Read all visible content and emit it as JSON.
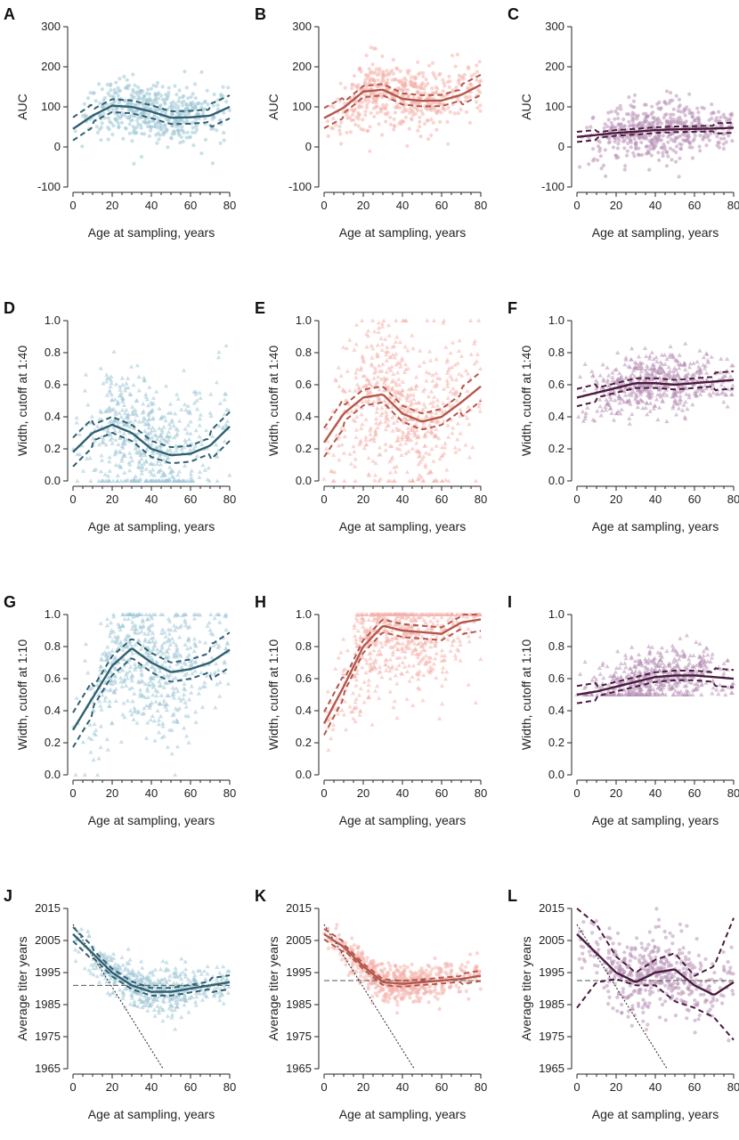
{
  "colors": {
    "teal": "#2f5f70",
    "teal_pts": "#9fc6d6",
    "red": "#b5564a",
    "red_pts": "#f4b3ab",
    "purple": "#4a1a3e",
    "purple_pts": "#b892b6"
  },
  "chart_data": [
    {
      "id": "A",
      "label": "A",
      "type": "scatter",
      "ylabel": "AUC",
      "xlabel": "Age at sampling, years",
      "xlim": [
        0,
        80
      ],
      "ylim": [
        -100,
        300
      ],
      "yticks": [
        -100,
        0,
        100,
        200,
        300
      ],
      "xticks": [
        0,
        20,
        40,
        60,
        80
      ],
      "color": "teal",
      "marker": "circle",
      "fit": {
        "x": [
          0,
          10,
          20,
          30,
          40,
          50,
          60,
          70,
          80
        ],
        "y": [
          45,
          78,
          103,
          100,
          88,
          73,
          74,
          78,
          100
        ]
      },
      "ci": 16,
      "points": {
        "n": 500,
        "cloud": [
          0.05,
          0.2,
          0.75,
          1.0,
          1.0,
          0.9,
          0.6,
          0.25
        ],
        "spread": 35
      }
    },
    {
      "id": "B",
      "label": "B",
      "type": "scatter",
      "ylabel": "AUC",
      "xlabel": "Age at sampling, years",
      "xlim": [
        0,
        80
      ],
      "ylim": [
        -100,
        300
      ],
      "yticks": [
        -100,
        0,
        100,
        200,
        300
      ],
      "xticks": [
        0,
        20,
        40,
        60,
        80
      ],
      "color": "red",
      "marker": "circle",
      "fit": {
        "x": [
          0,
          10,
          20,
          30,
          40,
          50,
          60,
          70,
          80
        ],
        "y": [
          72,
          98,
          138,
          143,
          120,
          115,
          116,
          130,
          155
        ]
      },
      "ci": 14,
      "points": {
        "n": 520,
        "cloud": [
          0.05,
          0.25,
          0.8,
          1.0,
          1.0,
          0.9,
          0.6,
          0.3
        ],
        "spread": 40
      }
    },
    {
      "id": "C",
      "label": "C",
      "type": "scatter",
      "ylabel": "AUC",
      "xlabel": "Age at sampling, years",
      "xlim": [
        0,
        80
      ],
      "ylim": [
        -100,
        300
      ],
      "yticks": [
        -100,
        0,
        100,
        200,
        300
      ],
      "xticks": [
        0,
        20,
        40,
        60,
        80
      ],
      "color": "purple",
      "marker": "circle",
      "fit": {
        "x": [
          0,
          10,
          20,
          30,
          40,
          50,
          60,
          70,
          80
        ],
        "y": [
          25,
          30,
          35,
          38,
          42,
          44,
          45,
          46,
          48
        ]
      },
      "ci": 7,
      "points": {
        "n": 500,
        "cloud": [
          0.05,
          0.2,
          0.6,
          0.95,
          1.0,
          0.95,
          0.7,
          0.35
        ],
        "spread": 35
      }
    },
    {
      "id": "D",
      "label": "D",
      "type": "scatter",
      "ylabel": "Width, cutoff at 1:40",
      "xlabel": "Age at sampling, years",
      "xlim": [
        0,
        80
      ],
      "ylim": [
        0,
        1
      ],
      "yticks": [
        0.0,
        0.2,
        0.4,
        0.6,
        0.8,
        1.0
      ],
      "xticks": [
        0,
        20,
        40,
        60,
        80
      ],
      "color": "teal",
      "marker": "triangle",
      "fit": {
        "x": [
          0,
          10,
          20,
          30,
          40,
          50,
          60,
          70,
          80
        ],
        "y": [
          0.18,
          0.3,
          0.35,
          0.3,
          0.2,
          0.16,
          0.17,
          0.22,
          0.34
        ]
      },
      "ci": 0.05,
      "points": {
        "n": 560,
        "cloud": [
          0.05,
          0.25,
          0.8,
          1.0,
          1.0,
          0.9,
          0.6,
          0.25
        ],
        "spread": 0.22,
        "clip": [
          0,
          1
        ]
      }
    },
    {
      "id": "E",
      "label": "E",
      "type": "scatter",
      "ylabel": "Width, cutoff at 1:40",
      "xlabel": "Age at sampling, years",
      "xlim": [
        0,
        80
      ],
      "ylim": [
        0,
        1
      ],
      "yticks": [
        0.0,
        0.2,
        0.4,
        0.6,
        0.8,
        1.0
      ],
      "xticks": [
        0,
        20,
        40,
        60,
        80
      ],
      "color": "red",
      "marker": "triangle",
      "fit": {
        "x": [
          0,
          10,
          20,
          30,
          40,
          50,
          60,
          70,
          80
        ],
        "y": [
          0.24,
          0.42,
          0.52,
          0.54,
          0.42,
          0.37,
          0.4,
          0.49,
          0.59
        ]
      },
      "ci": 0.05,
      "points": {
        "n": 600,
        "cloud": [
          0.05,
          0.3,
          0.85,
          1.0,
          1.0,
          0.9,
          0.6,
          0.3
        ],
        "spread": 0.25,
        "clip": [
          0,
          1
        ]
      }
    },
    {
      "id": "F",
      "label": "F",
      "type": "scatter",
      "ylabel": "Width, cutoff at 1:40",
      "xlabel": "Age at sampling, years",
      "xlim": [
        0,
        80
      ],
      "ylim": [
        0,
        1
      ],
      "yticks": [
        0.0,
        0.2,
        0.4,
        0.6,
        0.8,
        1.0
      ],
      "xticks": [
        0,
        20,
        40,
        60,
        80
      ],
      "color": "purple",
      "marker": "triangle",
      "fit": {
        "x": [
          0,
          10,
          20,
          30,
          40,
          50,
          60,
          70,
          80
        ],
        "y": [
          0.52,
          0.55,
          0.58,
          0.61,
          0.61,
          0.6,
          0.61,
          0.62,
          0.63
        ]
      },
      "ci": 0.03,
      "points": {
        "n": 560,
        "cloud": [
          0.05,
          0.25,
          0.7,
          1.0,
          1.0,
          0.95,
          0.65,
          0.3
        ],
        "spread": 0.09,
        "clip": [
          0,
          1
        ]
      }
    },
    {
      "id": "G",
      "label": "G",
      "type": "scatter",
      "ylabel": "Width, cutoff at 1:10",
      "xlabel": "Age at sampling, years",
      "xlim": [
        0,
        80
      ],
      "ylim": [
        0,
        1
      ],
      "yticks": [
        0.0,
        0.2,
        0.4,
        0.6,
        0.8,
        1.0
      ],
      "xticks": [
        0,
        20,
        40,
        60,
        80
      ],
      "color": "teal",
      "marker": "triangle",
      "fit": {
        "x": [
          0,
          10,
          20,
          30,
          40,
          50,
          60,
          70,
          80
        ],
        "y": [
          0.28,
          0.48,
          0.68,
          0.79,
          0.7,
          0.64,
          0.66,
          0.7,
          0.78
        ]
      },
      "ci": 0.06,
      "points": {
        "n": 600,
        "cloud": [
          0.05,
          0.25,
          0.8,
          1.0,
          1.0,
          0.9,
          0.6,
          0.25
        ],
        "spread": 0.22,
        "clip": [
          0,
          1
        ]
      }
    },
    {
      "id": "H",
      "label": "H",
      "type": "scatter",
      "ylabel": "Width, cutoff at 1:10",
      "xlabel": "Age at sampling, years",
      "xlim": [
        0,
        80
      ],
      "ylim": [
        0,
        1
      ],
      "yticks": [
        0.0,
        0.2,
        0.4,
        0.6,
        0.8,
        1.0
      ],
      "xticks": [
        0,
        20,
        40,
        60,
        80
      ],
      "color": "red",
      "marker": "triangle",
      "fit": {
        "x": [
          0,
          10,
          20,
          30,
          40,
          50,
          60,
          70,
          80
        ],
        "y": [
          0.32,
          0.55,
          0.8,
          0.93,
          0.9,
          0.89,
          0.88,
          0.95,
          0.97
        ]
      },
      "ci": 0.04,
      "points": {
        "n": 640,
        "cloud": [
          0.05,
          0.3,
          0.85,
          1.0,
          1.0,
          0.9,
          0.6,
          0.3
        ],
        "spread": 0.18,
        "clip": [
          0,
          1
        ]
      }
    },
    {
      "id": "I",
      "label": "I",
      "type": "scatter",
      "ylabel": "Width, cutoff at 1:10",
      "xlabel": "Age at sampling, years",
      "xlim": [
        0,
        80
      ],
      "ylim": [
        0,
        1
      ],
      "yticks": [
        0.0,
        0.2,
        0.4,
        0.6,
        0.8,
        1.0
      ],
      "xticks": [
        0,
        20,
        40,
        60,
        80
      ],
      "color": "purple",
      "marker": "triangle",
      "fit": {
        "x": [
          0,
          10,
          20,
          30,
          40,
          50,
          60,
          70,
          80
        ],
        "y": [
          0.5,
          0.52,
          0.55,
          0.58,
          0.61,
          0.62,
          0.62,
          0.61,
          0.6
        ]
      },
      "ci": 0.03,
      "points": {
        "n": 560,
        "cloud": [
          0.05,
          0.25,
          0.7,
          1.0,
          1.0,
          0.95,
          0.65,
          0.3
        ],
        "spread": 0.09,
        "clip": [
          0.5,
          1
        ]
      }
    },
    {
      "id": "J",
      "label": "J",
      "type": "scatter",
      "ylabel": "Average titer years",
      "xlabel": "Age at sampling, years",
      "xlim": [
        0,
        80
      ],
      "ylim": [
        1965,
        2015
      ],
      "yticks": [
        1965,
        1975,
        1985,
        1995,
        2005,
        2015
      ],
      "xticks": [
        0,
        20,
        40,
        60,
        80
      ],
      "color": "teal",
      "marker": "triangle",
      "fit": {
        "x": [
          0,
          10,
          20,
          30,
          40,
          50,
          60,
          70,
          80
        ],
        "y": [
          2007,
          2001,
          1995,
          1991,
          1989,
          1989,
          1990,
          1991,
          1992
        ]
      },
      "ci": 1.2,
      "hline": 1991,
      "diag": [
        [
          0,
          2010
        ],
        [
          46,
          1965
        ]
      ],
      "points": {
        "n": 520,
        "cloud": [
          0.1,
          0.3,
          0.7,
          1.0,
          1.0,
          0.9,
          0.6,
          0.25
        ],
        "spread": 3.5
      }
    },
    {
      "id": "K",
      "label": "K",
      "type": "scatter",
      "ylabel": "Average titer years",
      "xlabel": "Age at sampling, years",
      "xlim": [
        0,
        80
      ],
      "ylim": [
        1965,
        2015
      ],
      "yticks": [
        1965,
        1975,
        1985,
        1995,
        2005,
        2015
      ],
      "xticks": [
        0,
        20,
        40,
        60,
        80
      ],
      "color": "red",
      "marker": "circle",
      "fit": {
        "x": [
          0,
          10,
          20,
          30,
          40,
          50,
          60,
          70,
          80
        ],
        "y": [
          2007,
          2003,
          1997,
          1992,
          1991.5,
          1992,
          1992.5,
          1993,
          1994
        ]
      },
      "ci": 0.9,
      "hline": 1992.5,
      "diag": [
        [
          0,
          2010
        ],
        [
          46,
          1965
        ]
      ],
      "points": {
        "n": 560,
        "cloud": [
          0.1,
          0.3,
          0.75,
          1.0,
          1.0,
          0.9,
          0.6,
          0.3
        ],
        "spread": 3
      }
    },
    {
      "id": "L",
      "label": "L",
      "type": "scatter",
      "ylabel": "Average titer years",
      "xlabel": "Age at sampling, years",
      "xlim": [
        0,
        80
      ],
      "ylim": [
        1965,
        2015
      ],
      "yticks": [
        1965,
        1975,
        1985,
        1995,
        2005,
        2015
      ],
      "xticks": [
        0,
        20,
        40,
        60,
        80
      ],
      "color": "purple",
      "marker": "circle",
      "fit": {
        "x": [
          0,
          10,
          20,
          30,
          40,
          50,
          60,
          70,
          80
        ],
        "y": [
          2007,
          2001,
          1995,
          1992,
          1995,
          1996,
          1991,
          1988,
          1992
        ]
      },
      "lower": {
        "x": [
          0,
          10,
          20,
          30,
          40,
          50,
          60,
          70,
          80
        ],
        "y": [
          1984,
          1992,
          1993,
          1991,
          1991,
          1986,
          1984,
          1981,
          1974
        ]
      },
      "upper": {
        "x": [
          0,
          10,
          20,
          30,
          40,
          50,
          60,
          70,
          80
        ],
        "y": [
          2015,
          2010,
          2000,
          1995,
          1999,
          2001,
          1994,
          1997,
          2012
        ]
      },
      "hline": 1992.5,
      "diag": [
        [
          0,
          2010
        ],
        [
          46,
          1965
        ]
      ],
      "points": {
        "n": 480,
        "cloud": [
          0.15,
          0.35,
          0.7,
          1.0,
          1.0,
          0.9,
          0.65,
          0.3
        ],
        "spread": 6
      }
    }
  ]
}
